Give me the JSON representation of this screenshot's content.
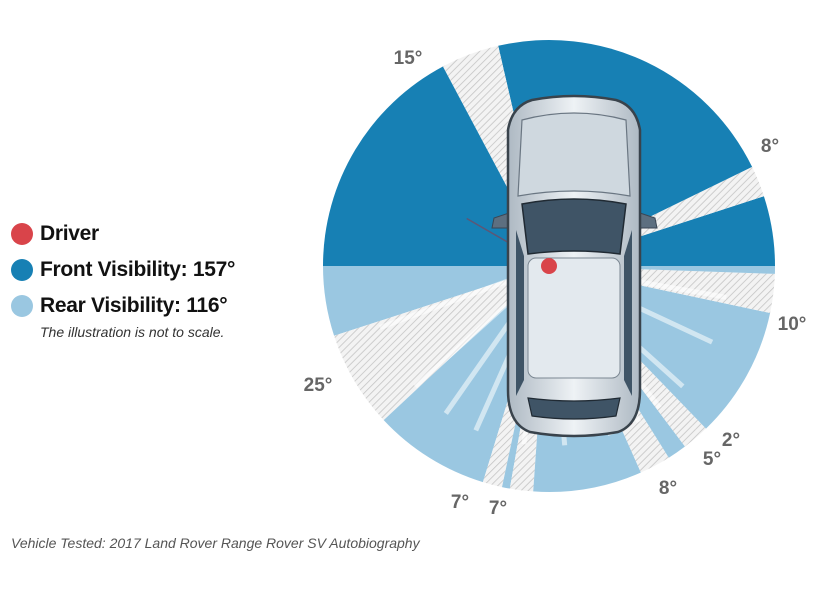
{
  "legend": {
    "driver": {
      "label": "Driver",
      "color": "#d9444a"
    },
    "front": {
      "label": "Front Visibility: 157°",
      "color": "#1780b4"
    },
    "rear": {
      "label": "Rear Visibility: 116°",
      "color": "#9ac7e1"
    },
    "note": "The illustration is not to scale."
  },
  "footer": "Vehicle Tested: 2017 Land Rover Range Rover SV Autobiography",
  "blind_spots": [
    {
      "label": "15°",
      "degrees": 15
    },
    {
      "label": "8°",
      "degrees": 8
    },
    {
      "label": "10°",
      "degrees": 10
    },
    {
      "label": "2°",
      "degrees": 2
    },
    {
      "label": "5°",
      "degrees": 5
    },
    {
      "label": "8°",
      "degrees": 8
    },
    {
      "label": "7°",
      "degrees": 7
    },
    {
      "label": "7°",
      "degrees": 7
    },
    {
      "label": "25°",
      "degrees": 25
    }
  ],
  "colors": {
    "front": "#1780b4",
    "rear": "#9ac7e1",
    "blind_hatch": "#c9c9c9",
    "driver": "#d9444a",
    "label": "#666666"
  }
}
